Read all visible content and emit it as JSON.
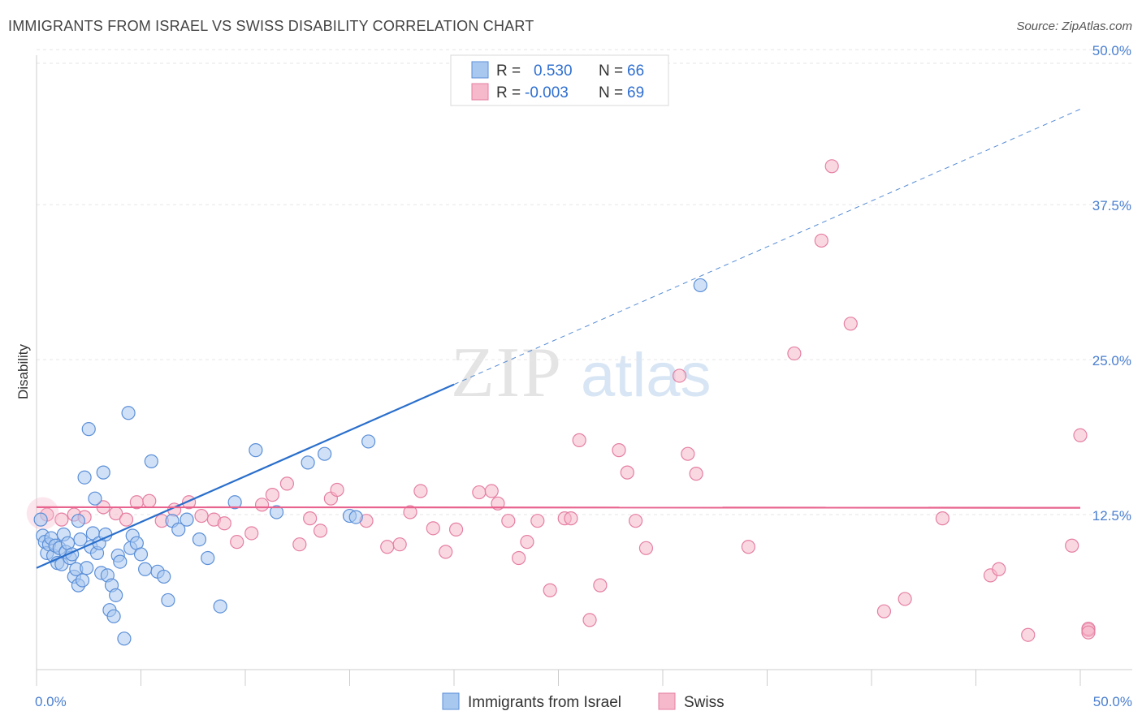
{
  "title": "IMMIGRANTS FROM ISRAEL VS SWISS DISABILITY CORRELATION CHART",
  "source": "Source: ZipAtlas.com",
  "watermark": {
    "zip": "ZIP",
    "atlas": "atlas"
  },
  "colors": {
    "blue_fill": "#a9c8f0",
    "blue_stroke": "#5b8fd8",
    "blue_line": "#2a6fcc",
    "pink_fill": "#f6b8cb",
    "pink_stroke": "#e57fa2",
    "pink_line": "#e8638e",
    "tick_label": "#4a7fd0"
  },
  "legend": {
    "rows": [
      {
        "r_label": "R = ",
        "r_value": "0.530",
        "n_label": "N = ",
        "n_value": "66",
        "color": "blue"
      },
      {
        "r_label": "R = ",
        "r_value": "-0.003",
        "n_label": "N = ",
        "n_value": "69",
        "color": "pink"
      }
    ]
  },
  "chart_data": {
    "type": "scatter",
    "title": "IMMIGRANTS FROM ISRAEL VS SWISS DISABILITY CORRELATION CHART",
    "ylabel": "Disability",
    "xlabel": "",
    "xlim": [
      0,
      50
    ],
    "ylim": [
      0,
      50
    ],
    "x_tick_labels": {
      "left": "0.0%",
      "right": "50.0%"
    },
    "y_ticks": [
      {
        "value": 12.5,
        "label": "12.5%"
      },
      {
        "value": 25.0,
        "label": "25.0%"
      },
      {
        "value": 37.5,
        "label": "37.5%"
      },
      {
        "value": 50.0,
        "label": "50.0%"
      }
    ],
    "grid": true,
    "legend_position": "top-center",
    "series": [
      {
        "name": "Immigrants from Israel",
        "color": "blue",
        "trend": {
          "x0": 0,
          "y0": 8.2,
          "x1": 20,
          "y1": 23.0,
          "x_dash_end": 50,
          "y_dash_end": 45.2
        },
        "points": [
          [
            0.2,
            12.1
          ],
          [
            0.3,
            10.8
          ],
          [
            0.4,
            10.3
          ],
          [
            0.5,
            9.4
          ],
          [
            0.6,
            10.1
          ],
          [
            0.7,
            10.6
          ],
          [
            0.8,
            9.2
          ],
          [
            0.9,
            10.0
          ],
          [
            1.0,
            8.6
          ],
          [
            1.1,
            9.8
          ],
          [
            1.2,
            8.5
          ],
          [
            1.3,
            10.9
          ],
          [
            1.4,
            9.5
          ],
          [
            1.5,
            10.2
          ],
          [
            1.6,
            9.0
          ],
          [
            1.7,
            9.3
          ],
          [
            1.8,
            7.5
          ],
          [
            1.9,
            8.1
          ],
          [
            2.0,
            6.8
          ],
          [
            2.0,
            12.0
          ],
          [
            2.1,
            10.5
          ],
          [
            2.2,
            7.2
          ],
          [
            2.3,
            15.5
          ],
          [
            2.4,
            8.2
          ],
          [
            2.5,
            19.4
          ],
          [
            2.6,
            9.9
          ],
          [
            2.7,
            11.0
          ],
          [
            2.8,
            13.8
          ],
          [
            2.9,
            9.4
          ],
          [
            3.0,
            10.2
          ],
          [
            3.1,
            7.8
          ],
          [
            3.2,
            15.9
          ],
          [
            3.3,
            10.9
          ],
          [
            3.4,
            7.6
          ],
          [
            3.5,
            4.8
          ],
          [
            3.6,
            6.8
          ],
          [
            3.7,
            4.3
          ],
          [
            3.8,
            6.0
          ],
          [
            3.9,
            9.2
          ],
          [
            4.0,
            8.7
          ],
          [
            4.2,
            2.5
          ],
          [
            4.4,
            20.7
          ],
          [
            4.5,
            9.8
          ],
          [
            4.6,
            10.8
          ],
          [
            4.8,
            10.2
          ],
          [
            5.0,
            9.3
          ],
          [
            5.2,
            8.1
          ],
          [
            5.5,
            16.8
          ],
          [
            5.8,
            7.9
          ],
          [
            6.1,
            7.5
          ],
          [
            6.3,
            5.6
          ],
          [
            6.5,
            12.0
          ],
          [
            6.8,
            11.3
          ],
          [
            7.2,
            12.1
          ],
          [
            7.8,
            10.5
          ],
          [
            8.2,
            9.0
          ],
          [
            8.8,
            5.1
          ],
          [
            9.5,
            13.5
          ],
          [
            10.5,
            17.7
          ],
          [
            11.5,
            12.7
          ],
          [
            13.0,
            16.7
          ],
          [
            13.8,
            17.4
          ],
          [
            15.0,
            12.4
          ],
          [
            15.3,
            12.3
          ],
          [
            15.9,
            18.4
          ],
          [
            31.8,
            31.0
          ]
        ]
      },
      {
        "name": "Swiss",
        "color": "pink",
        "trend": {
          "x0": 0,
          "y0": 13.1,
          "x1": 50,
          "y1": 13.05
        },
        "points": [
          [
            0.5,
            12.5
          ],
          [
            1.2,
            12.1
          ],
          [
            1.8,
            12.5
          ],
          [
            2.3,
            12.3
          ],
          [
            3.2,
            13.1
          ],
          [
            3.8,
            12.6
          ],
          [
            4.3,
            12.1
          ],
          [
            4.8,
            13.5
          ],
          [
            5.4,
            13.6
          ],
          [
            6.0,
            12.0
          ],
          [
            6.6,
            12.9
          ],
          [
            7.3,
            13.5
          ],
          [
            7.9,
            12.4
          ],
          [
            8.5,
            12.1
          ],
          [
            9.0,
            11.8
          ],
          [
            9.6,
            10.3
          ],
          [
            10.3,
            11.0
          ],
          [
            10.8,
            13.3
          ],
          [
            11.3,
            14.1
          ],
          [
            12.0,
            15.0
          ],
          [
            12.6,
            10.1
          ],
          [
            13.1,
            12.2
          ],
          [
            13.6,
            11.2
          ],
          [
            14.1,
            13.8
          ],
          [
            14.4,
            14.5
          ],
          [
            15.8,
            12.0
          ],
          [
            16.8,
            9.9
          ],
          [
            17.4,
            10.1
          ],
          [
            17.9,
            12.7
          ],
          [
            18.4,
            14.4
          ],
          [
            19.0,
            11.4
          ],
          [
            19.6,
            9.5
          ],
          [
            20.1,
            11.3
          ],
          [
            21.2,
            14.3
          ],
          [
            21.8,
            14.4
          ],
          [
            22.1,
            13.4
          ],
          [
            22.6,
            12.0
          ],
          [
            23.1,
            9.0
          ],
          [
            23.5,
            10.3
          ],
          [
            24.0,
            12.0
          ],
          [
            24.6,
            6.4
          ],
          [
            25.3,
            12.2
          ],
          [
            25.6,
            12.2
          ],
          [
            26.0,
            18.5
          ],
          [
            26.5,
            4.0
          ],
          [
            27.0,
            6.8
          ],
          [
            27.9,
            17.7
          ],
          [
            28.3,
            15.9
          ],
          [
            28.7,
            12.0
          ],
          [
            29.2,
            9.8
          ],
          [
            30.8,
            23.7
          ],
          [
            31.2,
            17.4
          ],
          [
            31.6,
            15.8
          ],
          [
            34.1,
            9.9
          ],
          [
            36.3,
            25.5
          ],
          [
            37.6,
            34.6
          ],
          [
            38.1,
            40.6
          ],
          [
            39.0,
            27.9
          ],
          [
            40.6,
            4.7
          ],
          [
            41.6,
            5.7
          ],
          [
            43.4,
            12.2
          ],
          [
            45.7,
            7.6
          ],
          [
            46.1,
            8.1
          ],
          [
            47.5,
            2.8
          ],
          [
            49.6,
            10.0
          ],
          [
            50.0,
            18.9
          ],
          [
            51.5,
            3.2
          ],
          [
            51.9,
            3.3
          ],
          [
            52.2,
            3.0
          ]
        ]
      }
    ],
    "bottom_legend": [
      "Immigrants from Israel",
      "Swiss"
    ]
  }
}
